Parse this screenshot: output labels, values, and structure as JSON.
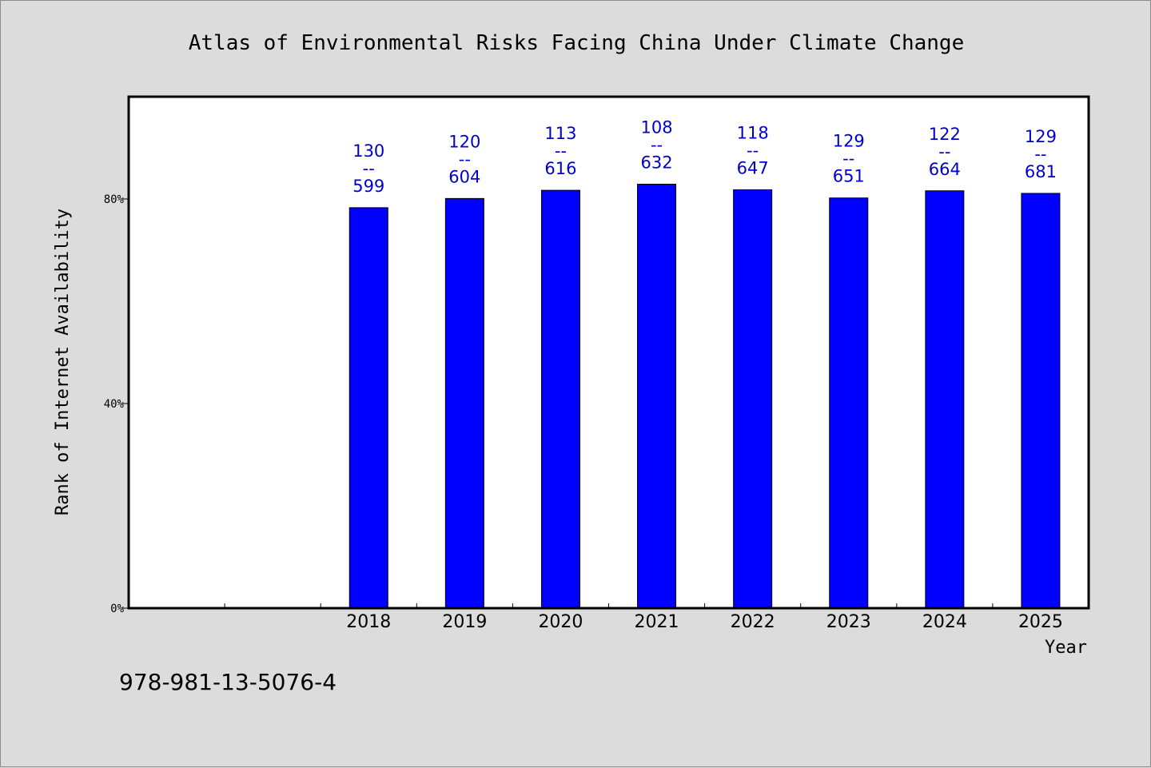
{
  "chart_data": {
    "type": "bar",
    "title": "Atlas of Environmental Risks Facing China Under Climate Change",
    "ylabel": "Rank of Internet Availability",
    "xlabel": "Year",
    "categories": [
      "",
      "",
      "2018",
      "2019",
      "2020",
      "2021",
      "2022",
      "2023",
      "2024",
      "2025"
    ],
    "values": [
      null,
      null,
      78.3,
      80.1,
      81.7,
      82.9,
      81.8,
      80.2,
      81.6,
      81.1
    ],
    "labels": [
      null,
      null,
      {
        "top": "130",
        "sep": "--",
        "bottom": "599"
      },
      {
        "top": "120",
        "sep": "--",
        "bottom": "604"
      },
      {
        "top": "113",
        "sep": "--",
        "bottom": "616"
      },
      {
        "top": "108",
        "sep": "--",
        "bottom": "632"
      },
      {
        "top": "118",
        "sep": "--",
        "bottom": "647"
      },
      {
        "top": "129",
        "sep": "--",
        "bottom": "651"
      },
      {
        "top": "122",
        "sep": "--",
        "bottom": "664"
      },
      {
        "top": "129",
        "sep": "--",
        "bottom": "681"
      }
    ],
    "ylim": [
      0,
      100
    ],
    "yticks": [
      0,
      40,
      80
    ],
    "ytick_labels": [
      "0%",
      "40%",
      "80%"
    ],
    "grid": false,
    "colors": {
      "bar": "#0000ff",
      "label": "#0000cc",
      "background": "#dcdcdc",
      "plot": "#ffffff"
    }
  },
  "footer": {
    "isbn": "978-981-13-5076-4"
  }
}
